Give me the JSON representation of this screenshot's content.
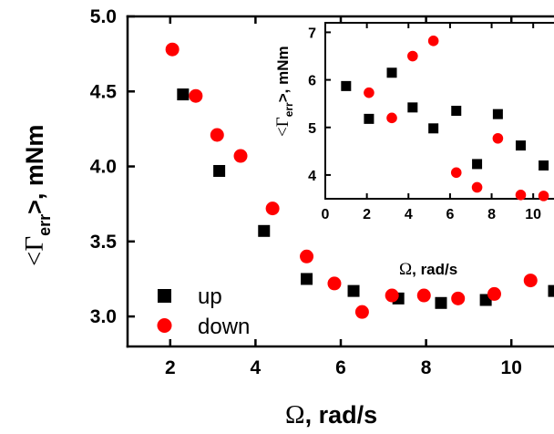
{
  "chart_data": [
    {
      "type": "scatter",
      "role": "main",
      "xlabel": {
        "symbol": "Ω",
        "rest": ", rad/s"
      },
      "ylabel": {
        "prefix": "<Γ",
        "subscript": "err",
        "suffix": ">, mNm"
      },
      "xlim": [
        1,
        11
      ],
      "ylim": [
        2.8,
        5.0
      ],
      "xticks": [
        2,
        4,
        6,
        8,
        10
      ],
      "yticks": [
        3.0,
        3.5,
        4.0,
        4.5,
        5.0
      ],
      "ytick_labels": [
        "3.0",
        "3.5",
        "4.0",
        "4.5",
        "5.0"
      ],
      "legend": {
        "placement": "bottom-left"
      },
      "series": [
        {
          "name": "up",
          "marker": "square",
          "color": "#000000",
          "points": [
            [
              2.3,
              4.48
            ],
            [
              3.15,
              3.97
            ],
            [
              4.2,
              3.57
            ],
            [
              5.2,
              3.25
            ],
            [
              6.3,
              3.17
            ],
            [
              7.35,
              3.12
            ],
            [
              8.35,
              3.09
            ],
            [
              9.4,
              3.11
            ],
            [
              11.0,
              3.17
            ]
          ]
        },
        {
          "name": "down",
          "marker": "circle",
          "color": "#ff0000",
          "points": [
            [
              2.05,
              4.78
            ],
            [
              2.6,
              4.47
            ],
            [
              3.1,
              4.21
            ],
            [
              3.65,
              4.07
            ],
            [
              4.4,
              3.72
            ],
            [
              5.2,
              3.4
            ],
            [
              5.85,
              3.22
            ],
            [
              6.5,
              3.03
            ],
            [
              7.2,
              3.14
            ],
            [
              7.95,
              3.14
            ],
            [
              8.75,
              3.12
            ],
            [
              9.6,
              3.15
            ],
            [
              10.45,
              3.24
            ]
          ]
        }
      ]
    },
    {
      "type": "scatter",
      "role": "inset",
      "xlabel": {
        "symbol": "Ω",
        "rest": ", rad/s"
      },
      "ylabel": {
        "prefix": "<Γ",
        "subscript": "err",
        "suffix": ">, mNm"
      },
      "xlim": [
        0,
        11
      ],
      "ylim": [
        3.5,
        7.2
      ],
      "xticks": [
        0,
        2,
        4,
        6,
        8,
        10
      ],
      "yticks": [
        4,
        5,
        6,
        7
      ],
      "series": [
        {
          "name": "up",
          "marker": "square",
          "color": "#000000",
          "points": [
            [
              1.0,
              5.87
            ],
            [
              2.1,
              5.18
            ],
            [
              3.2,
              6.15
            ],
            [
              4.2,
              5.42
            ],
            [
              5.2,
              4.98
            ],
            [
              6.3,
              5.35
            ],
            [
              7.3,
              4.23
            ],
            [
              8.3,
              5.28
            ],
            [
              9.4,
              4.62
            ],
            [
              10.5,
              4.2
            ]
          ]
        },
        {
          "name": "down",
          "marker": "circle",
          "color": "#ff0000",
          "points": [
            [
              2.1,
              5.73
            ],
            [
              3.2,
              5.2
            ],
            [
              4.2,
              6.5
            ],
            [
              5.2,
              6.82
            ],
            [
              6.3,
              4.05
            ],
            [
              7.3,
              3.74
            ],
            [
              8.3,
              4.77
            ],
            [
              9.4,
              3.58
            ],
            [
              10.5,
              3.56
            ]
          ]
        }
      ]
    }
  ]
}
